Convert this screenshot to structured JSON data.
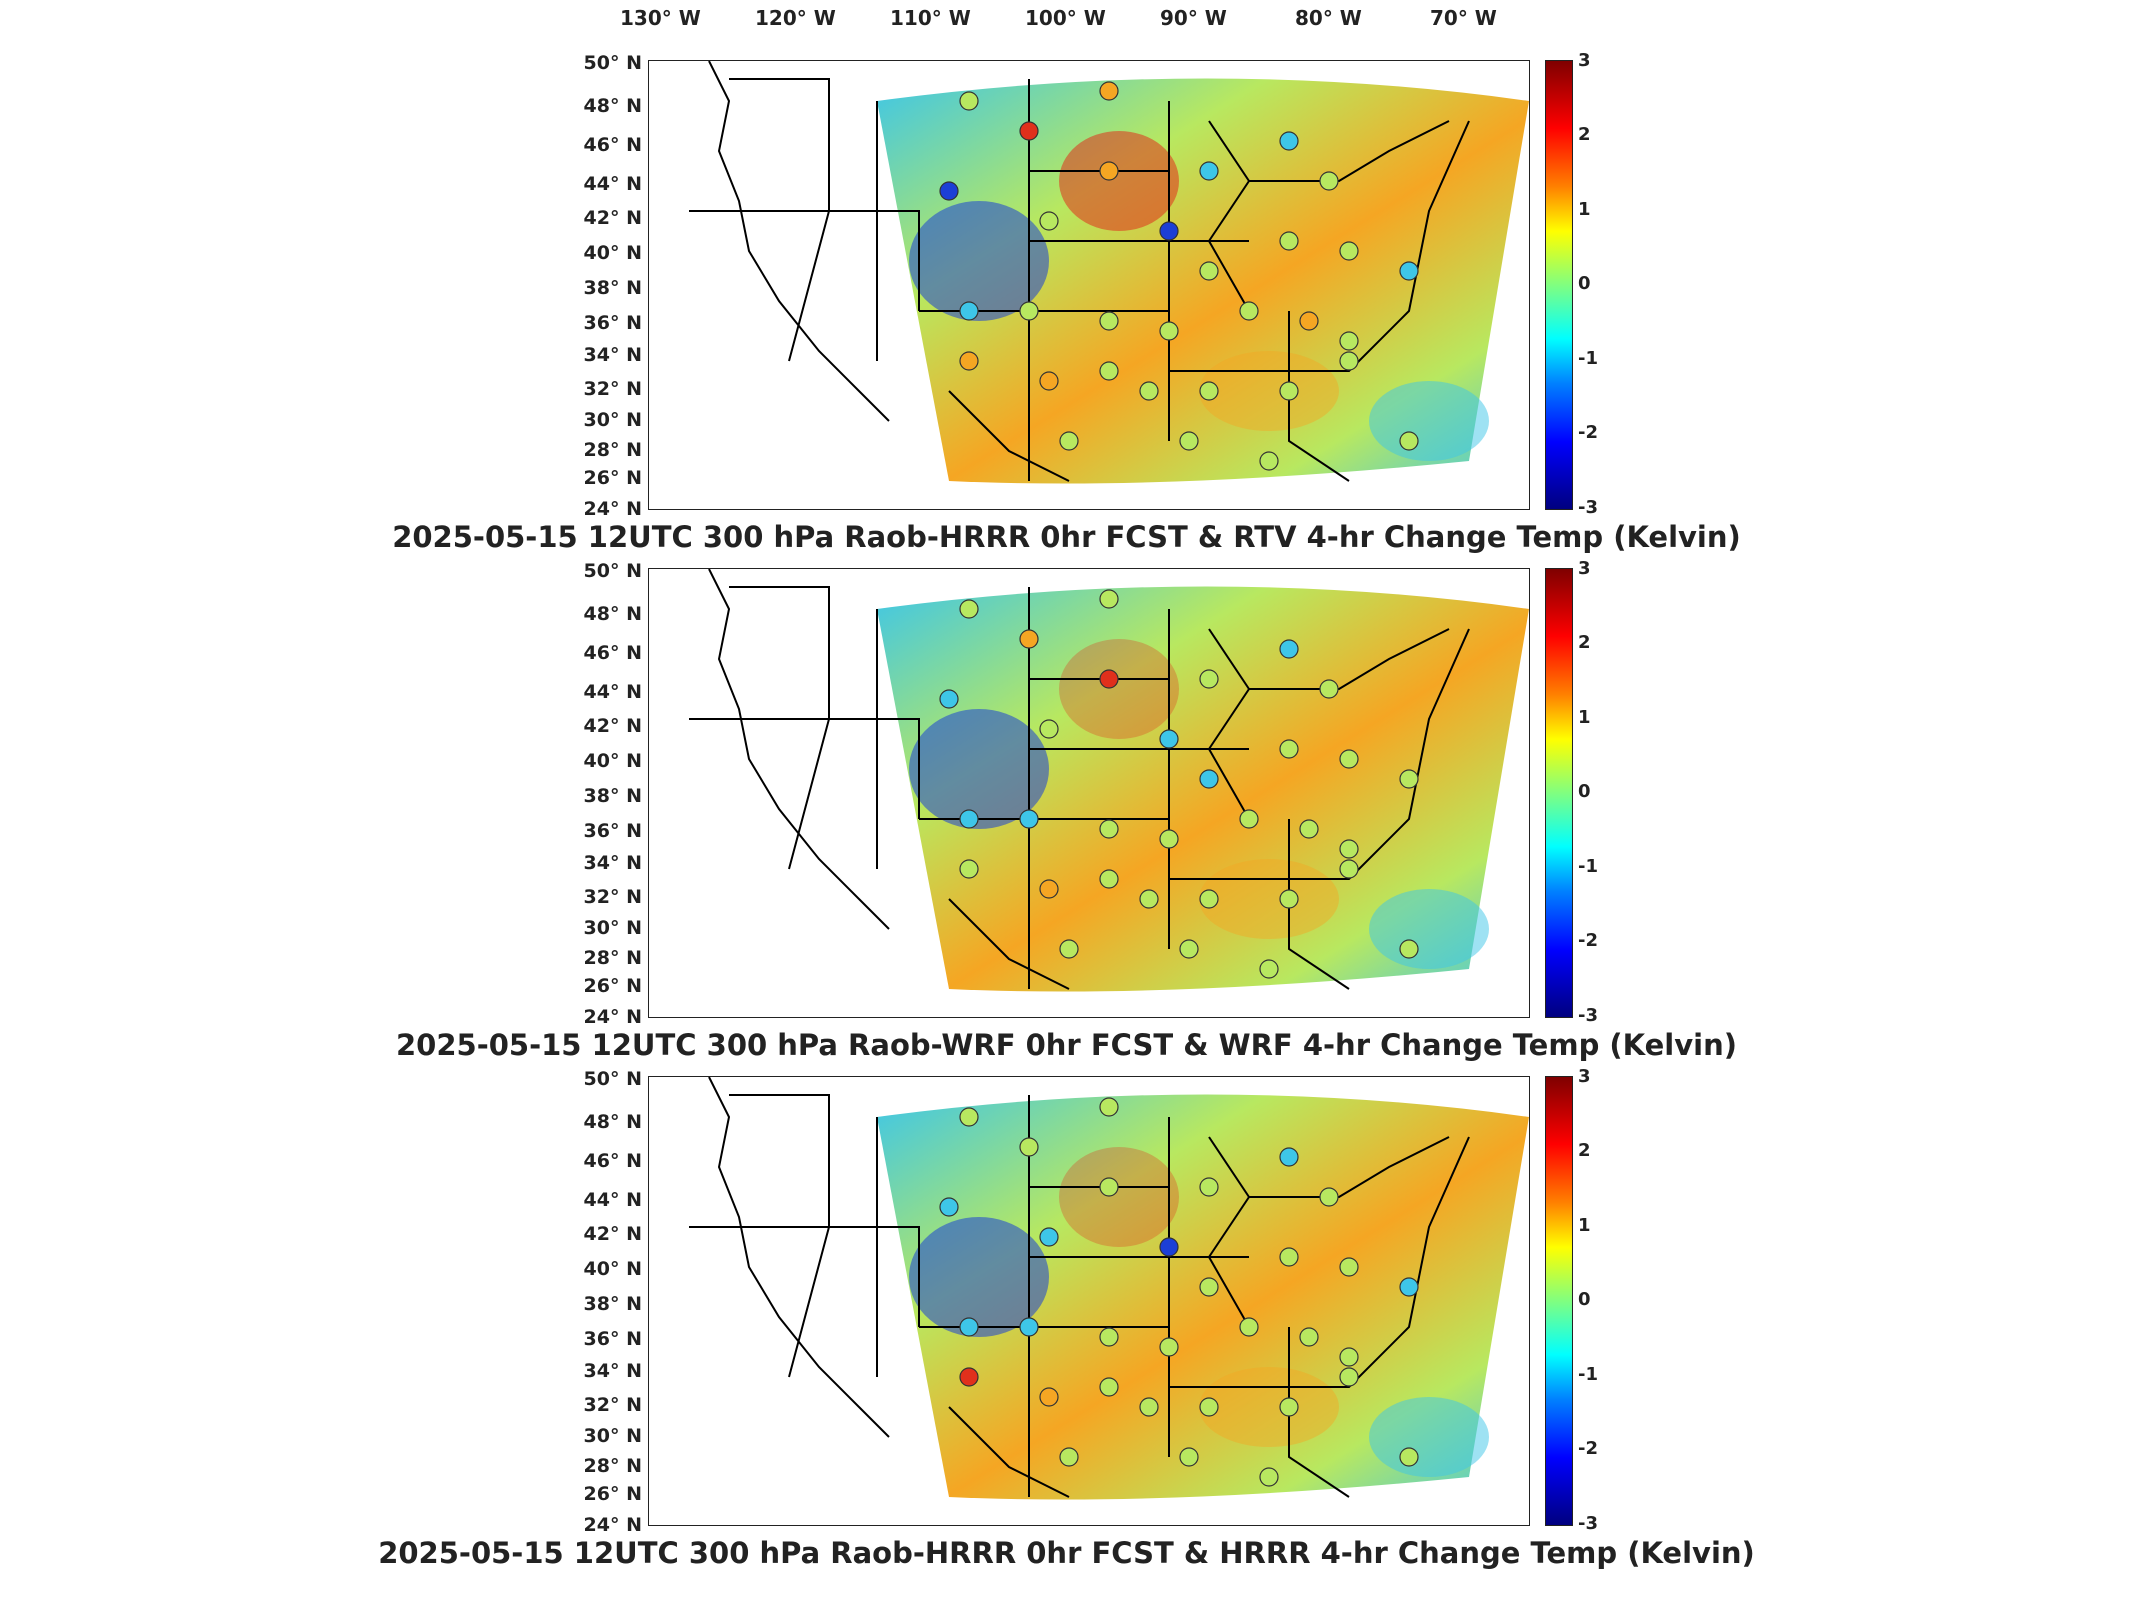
{
  "top_longitude_labels": [
    "130° W",
    "120° W",
    "110° W",
    "100° W",
    "90° W",
    "80° W",
    "70° W"
  ],
  "latitude_labels": [
    "50° N",
    "48° N",
    "46° N",
    "44° N",
    "42° N",
    "40° N",
    "38° N",
    "36° N",
    "34° N",
    "32° N",
    "30° N",
    "28° N",
    "26° N",
    "24° N"
  ],
  "colorbar": {
    "ticks": [
      "3",
      "2",
      "1",
      "0",
      "-1",
      "-2",
      "-3"
    ],
    "min": -3,
    "max": 3,
    "colormap": "jet"
  },
  "colors": {
    "hot": "#e0301c",
    "warm": "#f5a623",
    "neutral": "#b8e860",
    "cool": "#3ec6e8",
    "cold": "#1c3fd6"
  },
  "panels": [
    {
      "title": "2025-05-15 12UTC 300 hPa Raob-HRRR 0hr FCST & RTV 4-hr Change Temp (Kelvin)"
    },
    {
      "title": "2025-05-15 12UTC 300 hPa Raob-WRF 0hr FCST & WRF 4-hr Change Temp (Kelvin)"
    },
    {
      "title": "2025-05-15 12UTC 300 hPa Raob-HRRR 0hr FCST & HRRR 4-hr Change Temp (Kelvin)"
    }
  ]
}
